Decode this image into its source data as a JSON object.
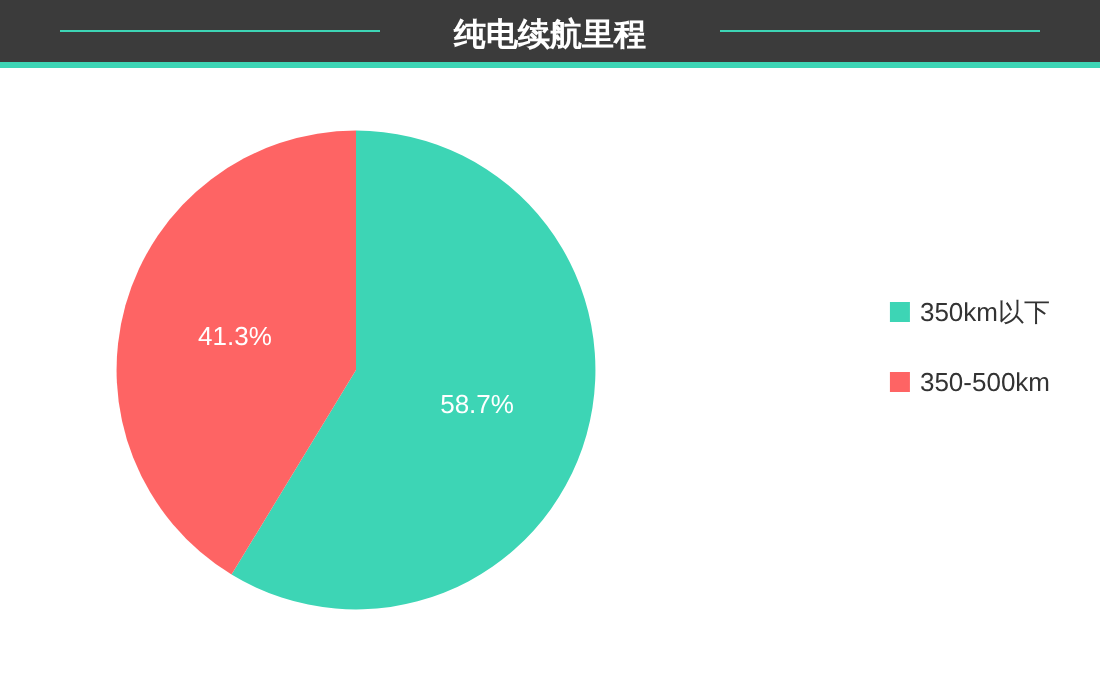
{
  "chart_data": {
    "type": "pie",
    "title": "纯电续航里程",
    "categories": [
      "350km以下",
      "350-500km"
    ],
    "values": [
      58.7,
      41.3
    ],
    "colors": [
      "#3dd5b5",
      "#fe6464"
    ],
    "value_labels": [
      "58.7%",
      "41.3%"
    ],
    "legend": "right"
  }
}
